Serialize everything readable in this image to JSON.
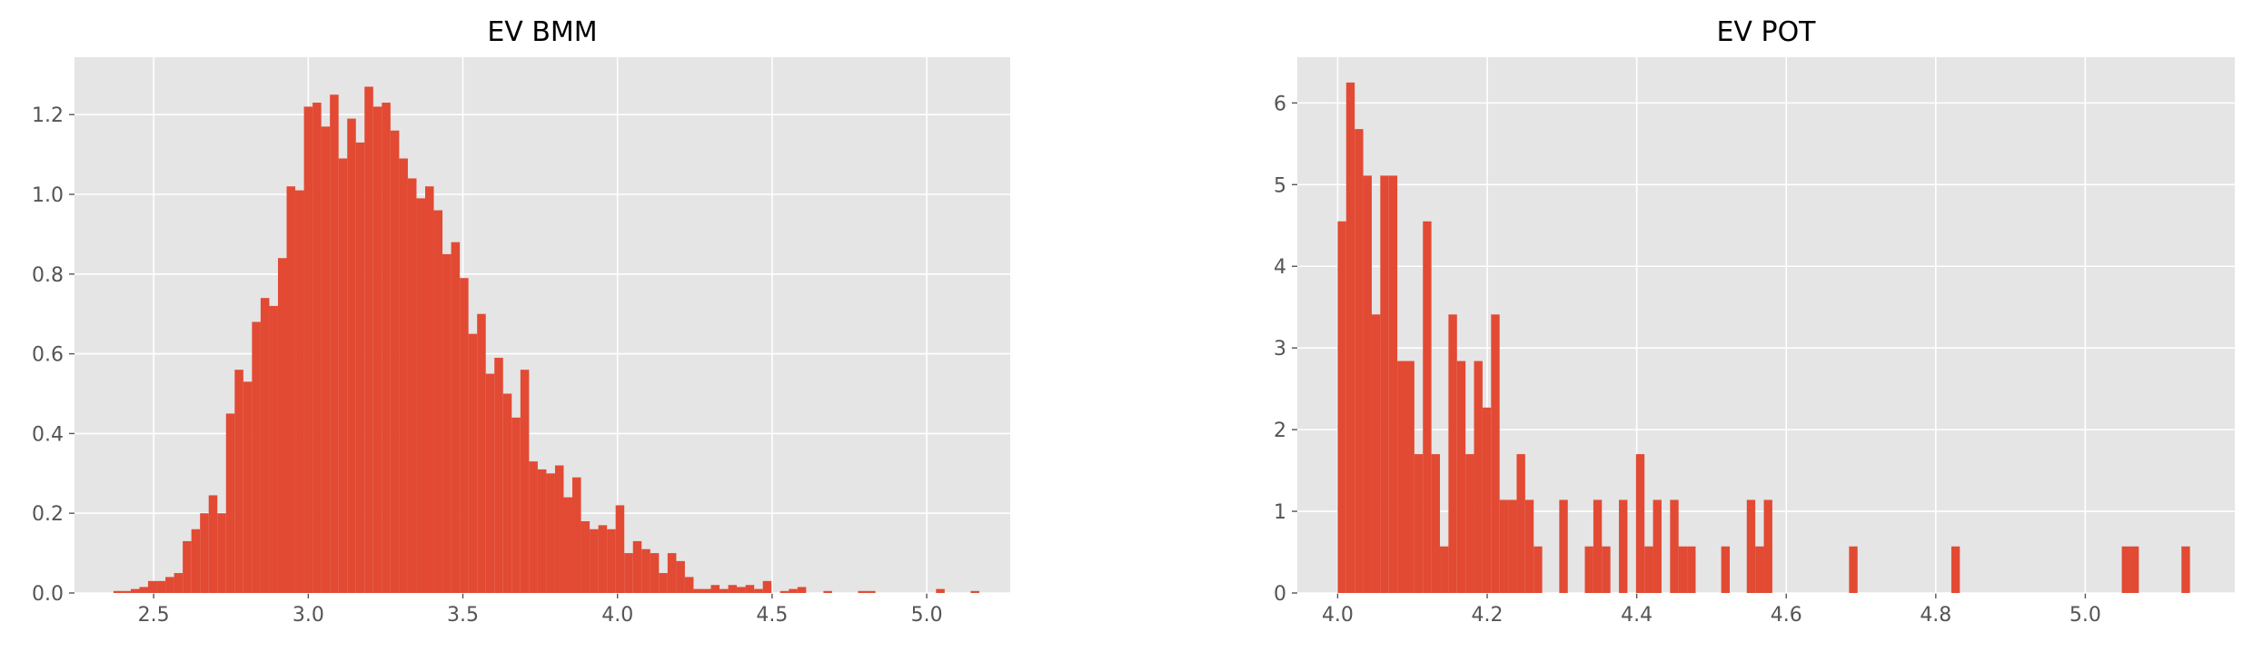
{
  "chart_data": [
    {
      "type": "histogram",
      "title": "EV BMM",
      "color": "#e24a33",
      "grid": true,
      "bins": [
        2.37,
        2.398,
        2.426,
        2.454,
        2.482,
        2.51,
        2.538,
        2.566,
        2.594,
        2.622,
        2.65,
        2.678,
        2.706,
        2.734,
        2.762,
        2.79,
        2.818,
        2.846,
        2.874,
        2.902,
        2.93,
        2.958,
        2.986,
        3.014,
        3.042,
        3.07,
        3.098,
        3.126,
        3.154,
        3.182,
        3.21,
        3.238,
        3.266,
        3.294,
        3.322,
        3.35,
        3.378,
        3.406,
        3.434,
        3.462,
        3.49,
        3.518,
        3.546,
        3.574,
        3.602,
        3.63,
        3.658,
        3.686,
        3.714,
        3.742,
        3.77,
        3.798,
        3.826,
        3.854,
        3.882,
        3.91,
        3.938,
        3.966,
        3.994,
        4.022,
        4.05,
        4.078,
        4.106,
        4.134,
        4.162,
        4.19,
        4.218,
        4.246,
        4.274,
        4.302,
        4.33,
        4.358,
        4.386,
        4.414,
        4.442,
        4.47,
        4.498,
        4.526,
        4.554,
        4.582,
        4.61,
        4.638,
        4.666,
        4.694,
        4.722,
        4.75,
        4.778,
        4.806,
        4.834,
        4.862,
        4.89,
        4.918,
        4.946,
        4.974,
        5.002,
        5.03,
        5.058,
        5.086,
        5.114,
        5.142,
        5.17
      ],
      "values": [
        0.005,
        0.005,
        0.01,
        0.015,
        0.03,
        0.03,
        0.04,
        0.05,
        0.13,
        0.16,
        0.2,
        0.245,
        0.2,
        0.45,
        0.56,
        0.53,
        0.68,
        0.74,
        0.72,
        0.84,
        1.02,
        1.01,
        1.22,
        1.23,
        1.17,
        1.25,
        1.09,
        1.19,
        1.13,
        1.27,
        1.22,
        1.23,
        1.16,
        1.09,
        1.04,
        0.99,
        1.02,
        0.96,
        0.85,
        0.88,
        0.79,
        0.65,
        0.7,
        0.55,
        0.59,
        0.5,
        0.44,
        0.56,
        0.33,
        0.31,
        0.3,
        0.32,
        0.24,
        0.29,
        0.18,
        0.16,
        0.17,
        0.16,
        0.22,
        0.1,
        0.13,
        0.11,
        0.1,
        0.05,
        0.1,
        0.08,
        0.04,
        0.01,
        0.01,
        0.02,
        0.01,
        0.02,
        0.015,
        0.02,
        0.01,
        0.03,
        0,
        0.005,
        0.01,
        0.015,
        0,
        0,
        0.005,
        0,
        0,
        0,
        0.005,
        0.005,
        0,
        0,
        0,
        0,
        0,
        0,
        0,
        0.01,
        0,
        0,
        0,
        0.005
      ],
      "xlim": [
        2.244,
        5.27
      ],
      "ylim": [
        0,
        1.344
      ],
      "xticks": [
        2.5,
        {
          "value": 3,
          "label": "3.0"
        },
        3.5,
        {
          "value": 4,
          "label": "4.0"
        },
        4.5,
        {
          "value": 5,
          "label": "5.0"
        }
      ],
      "yticks": [
        {
          "value": 0,
          "label": "0.0"
        },
        0.2,
        0.4,
        0.6,
        0.8,
        {
          "value": 1,
          "label": "1.0"
        },
        1.2
      ]
    },
    {
      "type": "histogram",
      "title": "EV POT",
      "color": "#e24a33",
      "grid": true,
      "bins": [
        4,
        4.0114,
        4.0228,
        4.0342,
        4.0456,
        4.057,
        4.0684,
        4.0798,
        4.0912,
        4.1026,
        4.114,
        4.1254,
        4.1368,
        4.1482,
        4.1596,
        4.171,
        4.1824,
        4.1938,
        4.2052,
        4.2166,
        4.228,
        4.2394,
        4.2508,
        4.2622,
        4.2736,
        4.285,
        4.2964,
        4.3078,
        4.3192,
        4.3306,
        4.342,
        4.3534,
        4.3648,
        4.3762,
        4.3876,
        4.399,
        4.4104,
        4.4218,
        4.4332,
        4.4446,
        4.456,
        4.4674,
        4.4788,
        4.4902,
        4.5016,
        4.513,
        4.5244,
        4.5358,
        4.5472,
        4.5586,
        4.57,
        4.5814,
        4.5928,
        4.6042,
        4.6156,
        4.627,
        4.6384,
        4.6498,
        4.6612,
        4.6726,
        4.684,
        4.6954,
        4.7068,
        4.7182,
        4.7296,
        4.741,
        4.7524,
        4.7638,
        4.7752,
        4.7866,
        4.798,
        4.8094,
        4.8208,
        4.8322,
        4.8436,
        4.855,
        4.8664,
        4.8778,
        4.8892,
        4.9006,
        4.912,
        4.9234,
        4.9348,
        4.9462,
        4.9576,
        4.969,
        4.9804,
        4.9918,
        5.0032,
        5.0146,
        5.026,
        5.0374,
        5.0488,
        5.0602,
        5.0716,
        5.083,
        5.0944,
        5.1058,
        5.1172,
        5.1286,
        5.14
      ],
      "values": [
        4.55,
        6.25,
        5.68,
        5.11,
        3.41,
        5.11,
        5.11,
        2.84,
        2.84,
        1.7,
        4.55,
        1.7,
        0.57,
        3.41,
        2.84,
        1.7,
        2.84,
        2.27,
        3.41,
        1.14,
        1.14,
        1.7,
        1.14,
        0.57,
        0,
        0,
        1.14,
        0,
        0,
        0.57,
        1.14,
        0.57,
        0,
        1.14,
        0,
        1.7,
        0.57,
        1.14,
        0,
        1.14,
        0.57,
        0.57,
        0,
        0,
        0,
        0.57,
        0,
        0,
        1.14,
        0.57,
        1.14,
        0,
        0,
        0,
        0,
        0,
        0,
        0,
        0,
        0,
        0.57,
        0,
        0,
        0,
        0,
        0,
        0,
        0,
        0,
        0,
        0,
        0,
        0.57,
        0,
        0,
        0,
        0,
        0,
        0,
        0,
        0,
        0,
        0,
        0,
        0,
        0,
        0,
        0,
        0,
        0,
        0,
        0,
        0.57,
        0.57,
        0,
        0,
        0,
        0,
        0,
        0.57
      ],
      "xlim": [
        3.946,
        5.2
      ],
      "ylim": [
        0,
        6.56
      ],
      "xticks": [
        {
          "value": 4,
          "label": "4.0"
        },
        4.2,
        4.4,
        4.6,
        4.8,
        {
          "value": 5,
          "label": "5.0"
        }
      ],
      "yticks": [
        0,
        1,
        2,
        3,
        4,
        5,
        6
      ]
    }
  ]
}
